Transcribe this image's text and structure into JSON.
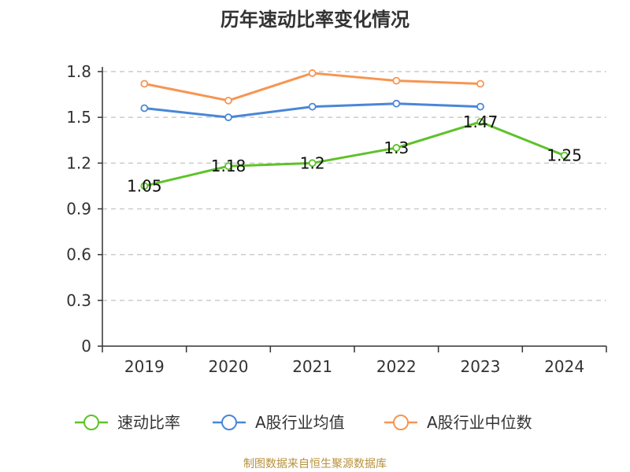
{
  "chart_data": {
    "type": "line",
    "title": "历年速动比率变化情况",
    "categories": [
      "2019",
      "2020",
      "2021",
      "2022",
      "2023",
      "2024"
    ],
    "ylim": [
      0,
      1.8
    ],
    "yticks": [
      "0",
      "0.3",
      "0.6",
      "0.9",
      "1.2",
      "1.5",
      "1.8"
    ],
    "grid": true,
    "legend_position": "bottom",
    "series": [
      {
        "name": "速动比率",
        "color": "#5ec22a",
        "values": [
          1.05,
          1.18,
          1.2,
          1.3,
          1.47,
          1.25
        ],
        "labels": [
          "1.05",
          "1.18",
          "1.2",
          "1.3",
          "1.47",
          "1.25"
        ],
        "show_labels": true
      },
      {
        "name": "A股行业均值",
        "color": "#4a86d8",
        "values": [
          1.56,
          1.5,
          1.57,
          1.59,
          1.57,
          null
        ],
        "show_labels": false
      },
      {
        "name": "A股行业中位数",
        "color": "#f79553",
        "values": [
          1.72,
          1.61,
          1.79,
          1.74,
          1.72,
          null
        ],
        "show_labels": false
      }
    ],
    "source": "制图数据来自恒生聚源数据库"
  }
}
